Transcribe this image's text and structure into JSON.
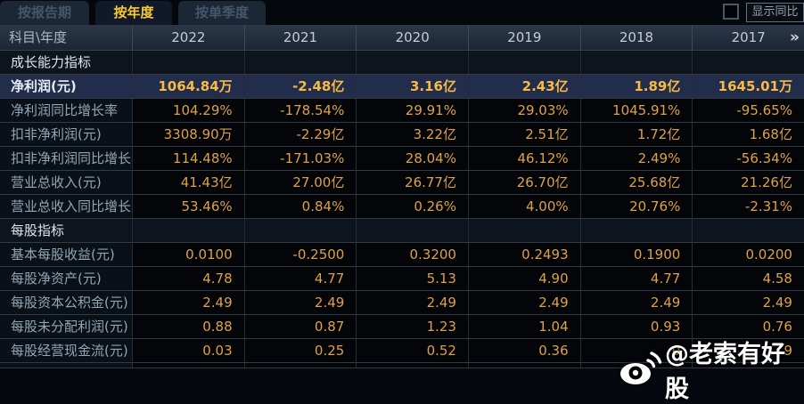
{
  "tabs": [
    {
      "label": "按报告期",
      "active": false
    },
    {
      "label": "按年度",
      "active": true
    },
    {
      "label": "按单季度",
      "active": false
    }
  ],
  "controls": {
    "show_yoy_label": "显示同比",
    "checkbox_checked": false
  },
  "table": {
    "corner_label": "科目\\年度",
    "years": [
      "2022",
      "2021",
      "2020",
      "2019",
      "2018",
      "2017"
    ],
    "more_icon": "»",
    "rows": [
      {
        "type": "section",
        "label": "成长能力指标"
      },
      {
        "type": "data",
        "label": "净利润(元)",
        "highlight": true,
        "values": [
          "1064.84万",
          "-2.48亿",
          "3.16亿",
          "2.43亿",
          "1.89亿",
          "1645.01万"
        ]
      },
      {
        "type": "data",
        "label": "净利润同比增长率",
        "values": [
          "104.29%",
          "-178.54%",
          "29.91%",
          "29.03%",
          "1045.91%",
          "-95.65%"
        ]
      },
      {
        "type": "data",
        "label": "扣非净利润(元)",
        "values": [
          "3308.90万",
          "-2.29亿",
          "3.22亿",
          "2.51亿",
          "1.72亿",
          "1.68亿"
        ]
      },
      {
        "type": "data",
        "label": "扣非净利润同比增长率",
        "values": [
          "114.48%",
          "-171.03%",
          "28.04%",
          "46.12%",
          "2.49%",
          "-56.34%"
        ]
      },
      {
        "type": "data",
        "label": "营业总收入(元)",
        "values": [
          "41.43亿",
          "27.00亿",
          "26.77亿",
          "26.70亿",
          "25.68亿",
          "21.26亿"
        ]
      },
      {
        "type": "data",
        "label": "营业总收入同比增长率",
        "values": [
          "53.46%",
          "0.84%",
          "0.26%",
          "4.00%",
          "20.76%",
          "-2.31%"
        ]
      },
      {
        "type": "section",
        "label": "每股指标"
      },
      {
        "type": "data",
        "label": "基本每股收益(元)",
        "values": [
          "0.0100",
          "-0.2500",
          "0.3200",
          "0.2493",
          "0.1900",
          "0.0200"
        ]
      },
      {
        "type": "data",
        "label": "每股净资产(元)",
        "values": [
          "4.78",
          "4.77",
          "5.13",
          "4.90",
          "4.77",
          "4.58"
        ]
      },
      {
        "type": "data",
        "label": "每股资本公积金(元)",
        "values": [
          "2.49",
          "2.49",
          "2.49",
          "2.49",
          "2.49",
          "2.49"
        ]
      },
      {
        "type": "data",
        "label": "每股未分配利润(元)",
        "values": [
          "0.88",
          "0.87",
          "1.23",
          "1.04",
          "0.93",
          "0.76"
        ]
      },
      {
        "type": "data",
        "label": "每股经营现金流(元)",
        "values": [
          "0.03",
          "0.25",
          "0.52",
          "0.36",
          "0",
          "9"
        ]
      }
    ]
  },
  "watermark": {
    "icon": "weibo-logo",
    "text": "@老索有好股"
  },
  "colors": {
    "background": "#05080e",
    "tab_active_text": "#f8cb2e",
    "tab_inactive_text": "#44566b",
    "header_bg": "#222d3d",
    "value_orange": "#dda246",
    "highlight_row_bg": "#212d4a",
    "highlight_value": "#f6ba45",
    "section_text": "#dde5ed",
    "label_text": "#93a5b4",
    "watermark_text": "#ffffff"
  }
}
